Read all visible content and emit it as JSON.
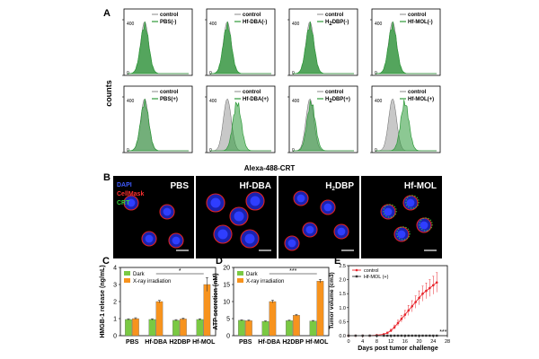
{
  "panel_a": {
    "label": "A",
    "y_axis_label": "counts",
    "x_axis_label": "Alexa-488-CRT",
    "top_row": [
      {
        "legend": [
          "control",
          "PBS(-)"
        ]
      },
      {
        "legend": [
          "control",
          "Hf-DBA(-)"
        ]
      },
      {
        "legend": [
          "control",
          "H2DBP(-)"
        ]
      },
      {
        "legend": [
          "control",
          "Hf-MOL(-)"
        ]
      }
    ],
    "bottom_row": [
      {
        "legend": [
          "control",
          "PBS(+)"
        ]
      },
      {
        "legend": [
          "control",
          "Hf-DBA(+)"
        ]
      },
      {
        "legend": [
          "control",
          "H2DBP(+)"
        ]
      },
      {
        "legend": [
          "control",
          "Hf-MOL(+)"
        ]
      }
    ],
    "colors": {
      "control": "#9a9a9a",
      "treated": "#2e9a3a"
    }
  },
  "panel_b": {
    "label": "B",
    "stain_labels": [
      {
        "text": "DAPI",
        "color": "#3f5bff"
      },
      {
        "text": "CellMask",
        "color": "#ff3030"
      },
      {
        "text": "CRT",
        "color": "#36d43c"
      }
    ],
    "images": [
      "PBS",
      "Hf-DBA",
      "H2DBP",
      "Hf-MOL"
    ]
  },
  "chart_data": [
    {
      "panel": "C",
      "type": "bar",
      "ylabel": "HMGB-1 release (ng/mL)",
      "categories": [
        "PBS",
        "Hf-DBA",
        "H2DBP",
        "Hf-MOL"
      ],
      "series": [
        {
          "name": "Dark",
          "color": "#7ac943",
          "values": [
            0.95,
            0.95,
            0.9,
            0.95
          ],
          "errors": [
            0.04,
            0.04,
            0.04,
            0.04
          ]
        },
        {
          "name": "X-ray irradiation",
          "color": "#f7931e",
          "values": [
            1.0,
            2.0,
            0.98,
            3.0
          ],
          "errors": [
            0.05,
            0.07,
            0.05,
            0.4
          ]
        }
      ],
      "ylim": [
        0,
        4
      ],
      "yticks": [
        0,
        1,
        2,
        3,
        4
      ],
      "significance": "*"
    },
    {
      "panel": "D",
      "type": "bar",
      "ylabel": "ATP secretion (nM)",
      "categories": [
        "PBS",
        "Hf-DBA",
        "H2DBP",
        "Hf-MOL"
      ],
      "series": [
        {
          "name": "Dark",
          "color": "#7ac943",
          "values": [
            4.5,
            4.2,
            4.4,
            4.3
          ],
          "errors": [
            0.15,
            0.15,
            0.15,
            0.15
          ]
        },
        {
          "name": "X-ray irradiation",
          "color": "#f7931e",
          "values": [
            4.4,
            10.0,
            6.0,
            16.0
          ],
          "errors": [
            0.2,
            0.4,
            0.25,
            0.5
          ]
        }
      ],
      "ylim": [
        0,
        20
      ],
      "yticks": [
        0,
        5,
        10,
        15,
        20
      ],
      "significance": "***"
    },
    {
      "panel": "E",
      "type": "line",
      "xlabel": "Days post tumor challenge",
      "ylabel": "Tumor volume (cm3)",
      "xlim": [
        0,
        28
      ],
      "xticks": [
        0,
        4,
        8,
        12,
        16,
        20,
        24,
        28
      ],
      "ylim": [
        0,
        2.5
      ],
      "yticks": [
        0,
        0.5,
        1.0,
        1.5,
        2.0,
        2.5
      ],
      "significance": "***",
      "series": [
        {
          "name": "control",
          "color": "#e8262d",
          "marker": "circle",
          "x": [
            0,
            2,
            4,
            6,
            8,
            10,
            11,
            12,
            13,
            14,
            15,
            16,
            17,
            18,
            19,
            20,
            21,
            22,
            23,
            24,
            25
          ],
          "y": [
            0.0,
            0.0,
            0.0,
            0.0,
            0.02,
            0.05,
            0.1,
            0.18,
            0.3,
            0.45,
            0.6,
            0.75,
            0.9,
            1.05,
            1.2,
            1.35,
            1.5,
            1.6,
            1.7,
            1.8,
            1.9
          ],
          "err": [
            0,
            0,
            0,
            0,
            0.01,
            0.02,
            0.03,
            0.05,
            0.08,
            0.1,
            0.12,
            0.15,
            0.18,
            0.2,
            0.22,
            0.25,
            0.27,
            0.28,
            0.3,
            0.32,
            0.35
          ]
        },
        {
          "name": "Hf-MOL (+)",
          "color": "#333333",
          "marker": "square",
          "x": [
            0,
            2,
            4,
            6,
            8,
            10,
            11,
            12,
            13,
            14,
            15,
            16,
            17,
            18,
            19,
            20,
            21,
            22,
            23,
            24,
            25
          ],
          "y": [
            0,
            0,
            0,
            0,
            0,
            0,
            0,
            0,
            0,
            0,
            0,
            0,
            0,
            0,
            0,
            0,
            0,
            0,
            0,
            0,
            0
          ],
          "err": [
            0,
            0,
            0,
            0,
            0,
            0,
            0,
            0,
            0,
            0,
            0,
            0,
            0,
            0,
            0,
            0,
            0,
            0,
            0,
            0,
            0
          ]
        }
      ]
    }
  ]
}
